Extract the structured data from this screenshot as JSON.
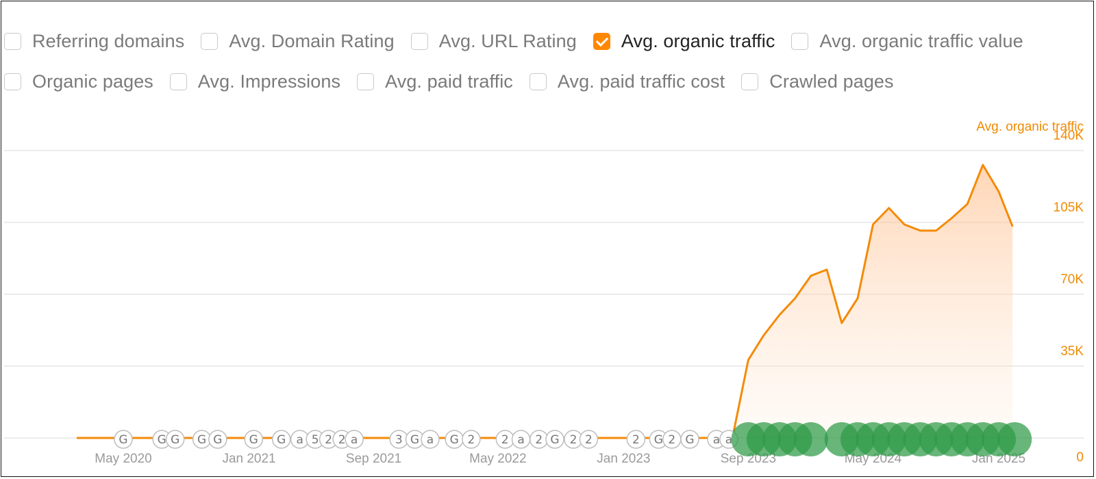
{
  "metrics": {
    "row1": [
      {
        "label": "Referring domains",
        "checked": false
      },
      {
        "label": "Avg. Domain Rating",
        "checked": false
      },
      {
        "label": "Avg. URL Rating",
        "checked": false
      },
      {
        "label": "Avg. organic traffic",
        "checked": true
      },
      {
        "label": "Avg. organic traffic value",
        "checked": false
      }
    ],
    "row2": [
      {
        "label": "Organic pages",
        "checked": false
      },
      {
        "label": "Avg. Impressions",
        "checked": false
      },
      {
        "label": "Avg. paid traffic",
        "checked": false
      },
      {
        "label": "Avg. paid traffic cost",
        "checked": false
      },
      {
        "label": "Crawled pages",
        "checked": false
      }
    ]
  },
  "colors": {
    "accent": "#ff8800",
    "line": "#f58a07",
    "grid": "#e6e6e6",
    "update_past": "#ffffff",
    "update_recent": "#2e9a47"
  },
  "chart_data": {
    "type": "area",
    "series": [
      {
        "name": "Avg. organic traffic",
        "x": [
          "2020-01-01",
          "2023-08-01",
          "2023-09-01",
          "2023-10-01",
          "2023-11-01",
          "2023-12-01",
          "2024-01-01",
          "2024-02-01",
          "2024-03-01",
          "2024-04-01",
          "2024-05-01",
          "2024-06-01",
          "2024-07-01",
          "2024-08-01",
          "2024-09-01",
          "2024-10-01",
          "2024-11-01",
          "2024-12-01",
          "2025-01-01",
          "2025-01-28"
        ],
        "values": [
          0,
          0,
          38000,
          50000,
          60000,
          68000,
          79000,
          82000,
          56000,
          68000,
          104000,
          112000,
          104000,
          101000,
          101000,
          107000,
          114000,
          133000,
          120000,
          103000
        ]
      }
    ],
    "y_axis_title": "Avg. organic traffic",
    "yticks": [
      "140K",
      "105K",
      "70K",
      "35K",
      "0"
    ],
    "ylim": [
      0,
      140000
    ],
    "xticks": [
      "May 2020",
      "Jan 2021",
      "Sep 2021",
      "May 2022",
      "Jan 2023",
      "Sep 2023",
      "May 2024",
      "Jan 2025"
    ],
    "x_range": [
      "2020-01-01",
      "2025-02-28"
    ],
    "grid": true,
    "annotations": {
      "past_labels": [
        "G",
        "G",
        "G",
        "G",
        "G",
        "G",
        "G",
        "a",
        "5",
        "2",
        "2",
        "a",
        "3",
        "G",
        "a",
        "G",
        "2",
        "2",
        "a",
        "2",
        "G",
        "2",
        "2",
        "2",
        "G",
        "2",
        "G",
        "a",
        "a"
      ],
      "past_dates": [
        "2020-05-01",
        "2020-07-15",
        "2020-08-10",
        "2020-10-01",
        "2020-11-01",
        "2021-01-10",
        "2021-03-05",
        "2021-04-10",
        "2021-05-10",
        "2021-06-05",
        "2021-07-01",
        "2021-07-25",
        "2021-10-20",
        "2021-11-20",
        "2021-12-20",
        "2022-02-05",
        "2022-03-10",
        "2022-05-15",
        "2022-06-15",
        "2022-07-20",
        "2022-08-20",
        "2022-09-25",
        "2022-10-25",
        "2023-01-25",
        "2023-03-10",
        "2023-04-05",
        "2023-05-10",
        "2023-07-01",
        "2023-07-25"
      ],
      "recent_dates": [
        "2023-09-01",
        "2023-10-01",
        "2023-11-01",
        "2023-12-01",
        "2024-01-01",
        "2024-03-01",
        "2024-04-01",
        "2024-05-01",
        "2024-06-01",
        "2024-07-01",
        "2024-08-01",
        "2024-09-01",
        "2024-10-01",
        "2024-11-01",
        "2024-12-01",
        "2025-01-01",
        "2025-02-01"
      ]
    }
  }
}
